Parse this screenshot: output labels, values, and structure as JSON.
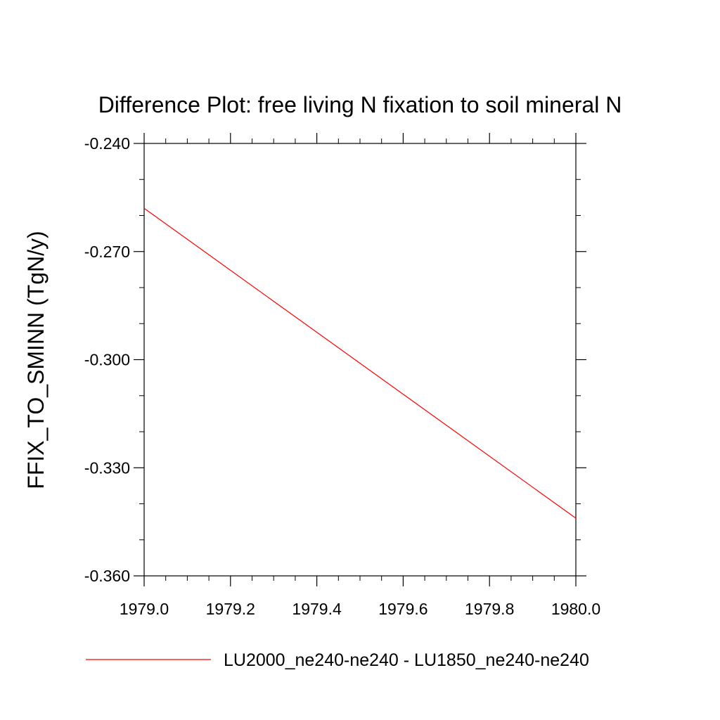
{
  "chart_data": {
    "type": "line",
    "title": "Difference Plot: free living N fixation to soil mineral N",
    "xlabel": "",
    "ylabel": "FFIX_TO_SMINN  (TgN/y)",
    "xlim": [
      1979.0,
      1980.0
    ],
    "ylim": [
      -0.36,
      -0.24
    ],
    "x_ticks": [
      "1979.0",
      "1979.2",
      "1979.4",
      "1979.6",
      "1979.8",
      "1980.0"
    ],
    "y_ticks": [
      "-0.240",
      "-0.270",
      "-0.300",
      "-0.330",
      "-0.360"
    ],
    "series": [
      {
        "name": "LU2000_ne240-ne240 - LU1850_ne240-ne240",
        "color": "#ff0000",
        "x": [
          1979.0,
          1980.0
        ],
        "y": [
          -0.258,
          -0.344
        ]
      }
    ],
    "legend_position": "bottom",
    "grid": false
  }
}
